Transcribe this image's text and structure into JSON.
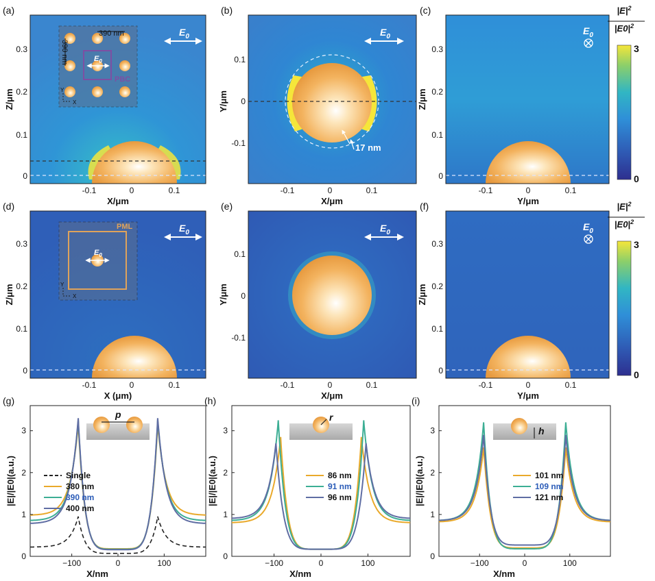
{
  "colors": {
    "field_low": "#2e2f8f",
    "field_mid": "#2f8fd8",
    "field_high": "#f5e63a",
    "sphere": "#f3b35f",
    "pbc": "#7d4fa3",
    "pml": "#e0a35a",
    "dash_dark": "#333333",
    "dash_light": "#dde6ff",
    "series_single": "#222222",
    "series_a": "#e9a92a",
    "series_b": "#3cae94",
    "series_c": "#5f6da3",
    "highlight_label": "#2b5cb8"
  },
  "maps": [
    {
      "letter": "(a)",
      "xlabel": "X/μm",
      "ylabel": "Z/μm",
      "xticks": [
        "-0.1",
        "0",
        "0.1"
      ],
      "yticks": [
        "0",
        "0.1",
        "0.2",
        "0.3"
      ],
      "e0": "E",
      "e0_sub": "0",
      "polarization": "in-plane-x"
    },
    {
      "letter": "(b)",
      "xlabel": "X/μm",
      "ylabel": "Y/μm",
      "xticks": [
        "-0.1",
        "0",
        "0.1"
      ],
      "yticks": [
        "-0.1",
        "0",
        "0.1"
      ],
      "e0": "E",
      "e0_sub": "0",
      "polarization": "in-plane-x",
      "annotation": "17 nm"
    },
    {
      "letter": "(c)",
      "xlabel": "Y/μm",
      "ylabel": "Z/μm",
      "xticks": [
        "-0.1",
        "0",
        "0.1"
      ],
      "yticks": [
        "0",
        "0.1",
        "0.2",
        "0.3"
      ],
      "e0": "E",
      "e0_sub": "0",
      "polarization": "into-page"
    },
    {
      "letter": "(d)",
      "xlabel": "X (μm)",
      "ylabel": "Z/μm",
      "xticks": [
        "-0.1",
        "0",
        "0.1"
      ],
      "yticks": [
        "0",
        "0.1",
        "0.2",
        "0.3"
      ],
      "e0": "E",
      "e0_sub": "0",
      "polarization": "in-plane-x"
    },
    {
      "letter": "(e)",
      "xlabel": "X/μm",
      "ylabel": "Y/μm",
      "xticks": [
        "-0.1",
        "0",
        "0.1"
      ],
      "yticks": [
        "-0.1",
        "0",
        "0.1"
      ],
      "e0": "E",
      "e0_sub": "0",
      "polarization": "in-plane-x"
    },
    {
      "letter": "(f)",
      "xlabel": "Y/μm",
      "ylabel": "Z/μm",
      "xticks": [
        "-0.1",
        "0",
        "0.1"
      ],
      "yticks": [
        "0",
        "0.1",
        "0.2",
        "0.3"
      ],
      "e0": "E",
      "e0_sub": "0",
      "polarization": "into-page"
    }
  ],
  "inset_a": {
    "period": "390 nm",
    "period_v": "390 nm",
    "boundary": "PBC",
    "e0": "E",
    "e0_sub": "0",
    "axis_y": "Y",
    "axis_x": "X"
  },
  "inset_d": {
    "boundary": "PML",
    "e0": "E",
    "e0_sub": "0",
    "axis_y": "Y",
    "axis_x": "X"
  },
  "colorbar": {
    "label_num": "|E|",
    "label_den": "|E0|",
    "exp": "2",
    "max": "3",
    "min": "0"
  },
  "chart_data": [
    {
      "type": "line",
      "panel": "(g)",
      "param": "p",
      "xlabel": "X/nm",
      "ylabel": "|E|/|E0|(a.u.)",
      "xlim": [
        -190,
        190
      ],
      "ylim": [
        0,
        3.6
      ],
      "xticks": [
        "-100",
        "0",
        "100"
      ],
      "yticks": [
        "0",
        "1",
        "2",
        "3"
      ],
      "series": [
        {
          "name": "Single",
          "style": "dashed",
          "peak_x": 86,
          "peak": 0.95,
          "edge": 0.22,
          "center": 0.07
        },
        {
          "name": "380 nm",
          "peak_x": 86,
          "peak": 3.15,
          "edge": 0.98,
          "center": 0.18
        },
        {
          "name": "390 nm",
          "highlight": true,
          "peak_x": 86,
          "peak": 3.25,
          "edge": 0.85,
          "center": 0.17
        },
        {
          "name": "400 nm",
          "peak_x": 86,
          "peak": 3.3,
          "edge": 0.78,
          "center": 0.16
        }
      ]
    },
    {
      "type": "line",
      "panel": "(h)",
      "param": "r",
      "xlabel": "X/nm",
      "ylabel": "|E|/|E0|(a.u.)",
      "xlim": [
        -190,
        190
      ],
      "ylim": [
        0,
        3.6
      ],
      "xticks": [
        "-100",
        "0",
        "100"
      ],
      "yticks": [
        "0",
        "1",
        "2",
        "3"
      ],
      "series": [
        {
          "name": "86 nm",
          "peak_x": 86,
          "peak": 2.85,
          "edge": 0.8,
          "center": 0.17
        },
        {
          "name": "91 nm",
          "highlight": true,
          "peak_x": 91,
          "peak": 3.25,
          "edge": 0.85,
          "center": 0.17
        },
        {
          "name": "96 nm",
          "peak_x": 96,
          "peak": 2.7,
          "edge": 0.9,
          "center": 0.17
        }
      ]
    },
    {
      "type": "line",
      "panel": "(i)",
      "param": "h",
      "xlabel": "X/nm",
      "ylabel": "|E|/|E0|(a.u.)",
      "xlim": [
        -190,
        190
      ],
      "ylim": [
        0,
        3.6
      ],
      "xticks": [
        "-100",
        "0",
        "100"
      ],
      "yticks": [
        "0",
        "1",
        "2",
        "3"
      ],
      "series": [
        {
          "name": "101 nm",
          "peak_x": 91,
          "peak": 2.6,
          "edge": 0.82,
          "center": 0.2
        },
        {
          "name": "109 nm",
          "highlight": true,
          "peak_x": 91,
          "peak": 3.2,
          "edge": 0.85,
          "center": 0.18
        },
        {
          "name": "121 nm",
          "peak_x": 91,
          "peak": 2.9,
          "edge": 0.85,
          "center": 0.27
        }
      ]
    }
  ]
}
